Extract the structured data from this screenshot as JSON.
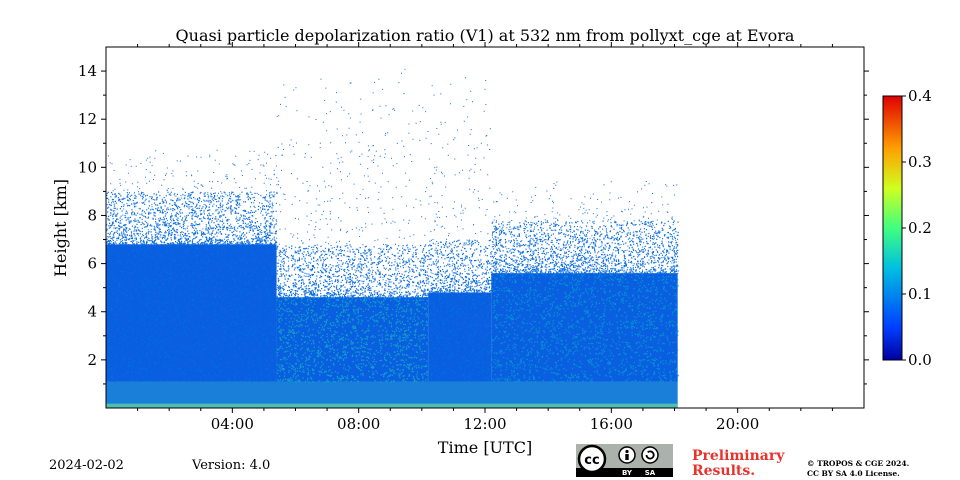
{
  "chart_data": {
    "type": "heatmap",
    "title": "Quasi particle depolarization ratio (V1) at 532 nm from pollyxt_cge at Evora",
    "xlabel": "Time [UTC]",
    "ylabel": "Height [km]",
    "x_tick_labels": [
      "04:00",
      "08:00",
      "12:00",
      "16:00",
      "20:00"
    ],
    "x_ticks_hours": [
      4,
      8,
      12,
      16,
      20
    ],
    "xlim_hours": [
      0,
      24
    ],
    "y_tick_labels": [
      "2",
      "4",
      "6",
      "8",
      "10",
      "12",
      "14"
    ],
    "y_ticks": [
      2,
      4,
      6,
      8,
      10,
      12,
      14
    ],
    "ylim_km": [
      0,
      15
    ],
    "data_end_hour": 18.1,
    "colorbar": {
      "min": 0.0,
      "max": 0.4,
      "tick_labels": [
        "0.0",
        "0.1",
        "0.2",
        "0.3",
        "0.4"
      ],
      "ticks": [
        0.0,
        0.1,
        0.2,
        0.3,
        0.4
      ],
      "colormap": "jet"
    },
    "signal_profile": [
      {
        "start_hour": 0.0,
        "end_hour": 5.4,
        "dense_top_km": 6.8,
        "sparse_top_km": 11.0
      },
      {
        "start_hour": 5.4,
        "end_hour": 10.2,
        "dense_top_km": 4.6,
        "sparse_top_km": 14.5
      },
      {
        "start_hour": 10.2,
        "end_hour": 12.2,
        "dense_top_km": 4.8,
        "sparse_top_km": 14.5
      },
      {
        "start_hour": 12.2,
        "end_hour": 18.1,
        "dense_top_km": 5.6,
        "sparse_top_km": 9.5
      }
    ]
  },
  "footer": {
    "date": "2024-02-02",
    "version": "Version: 4.0",
    "preliminary": "Preliminary",
    "results": "Results.",
    "copyright_line1": "© TROPOS & CGE 2024.",
    "copyright_line2": "CC BY SA 4.0 License.",
    "cc_label": "cc",
    "by_label": "BY",
    "sa_label": "SA"
  }
}
